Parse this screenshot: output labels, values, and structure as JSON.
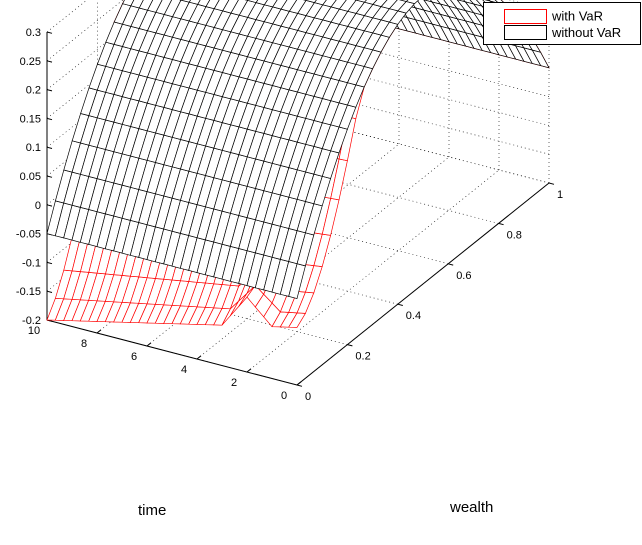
{
  "chart_data": {
    "type": "surface",
    "title": "",
    "xlabel": "wealth",
    "ylabel": "time",
    "zlabel": "",
    "xlim": [
      0,
      1
    ],
    "ylim": [
      0,
      10
    ],
    "zlim": [
      -0.2,
      0.3
    ],
    "xticks": [
      "0",
      "0.2",
      "0.4",
      "0.6",
      "0.8",
      "1"
    ],
    "yticks": [
      "0",
      "2",
      "4",
      "6",
      "8",
      "10"
    ],
    "zticks": [
      "-0.2",
      "-0.15",
      "-0.1",
      "-0.05",
      "0",
      "0.05",
      "0.1",
      "0.15",
      "0.2",
      "0.25",
      "0.3"
    ],
    "grid": true,
    "legend_position": "top-right",
    "series": [
      {
        "name": "with VaR",
        "color": "#ff0000",
        "wealth_grid_steps": 30,
        "time_grid_steps": 30,
        "peak_value": 0.3,
        "value_at_wealth_0_time_0": -0.1,
        "value_at_wealth_0_time_2": 0.0,
        "value_at_wealth_0_time_10": -0.2,
        "value_at_wealth_1": 0.0
      },
      {
        "name": "without VaR",
        "color": "#000000",
        "wealth_grid_steps": 30,
        "time_grid_steps": 30,
        "peak_value": 0.3,
        "value_at_wealth_0": -0.05,
        "value_at_wealth_1": 0.0
      }
    ]
  }
}
